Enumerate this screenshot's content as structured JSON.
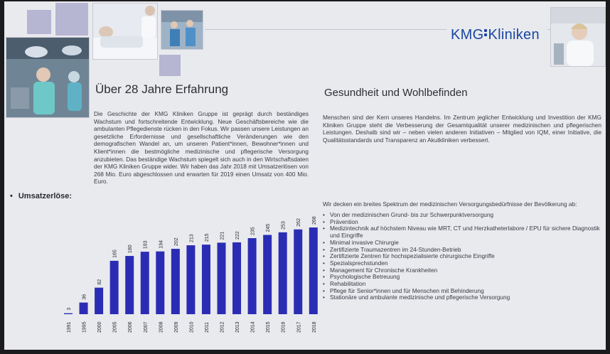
{
  "brand": {
    "logo_left": "KMG",
    "logo_right": "Kliniken",
    "accent": "#1a46a0",
    "bar_color": "#2a2db4",
    "deco_square_color": "#b6b5d2"
  },
  "left": {
    "heading": "Über 28 Jahre Erfahrung",
    "paragraph": "Die Geschichte der KMG Kliniken Gruppe ist geprägt durch beständiges Wachstum und fortschreitende Entwicklung. Neue Geschäftsbereiche wie die ambulanten Pflegedienste rücken in den Fokus. Wir passen unsere Leistungen an gesetzliche Erfordernisse und gesellschaftliche Veränderungen wie den demografischen Wandel an, um unseren Patient*innen, Bewohner*innen und Klient*innen die bestmögliche medizinische und pflegerische Versorgung anzubieten. Das beständige Wachstum spiegelt sich auch in den Wirtschaftsdaten der KMG Kliniken Gruppe wider. Wir haben das Jahr 2018 mit Umsatzerlösen von 268 Mio. Euro abgeschlossen und erwarten für 2019 einen Umsatz von 400 Mio. Euro.",
    "chart_label": "Umsatzerlöse:"
  },
  "right": {
    "heading": "Gesundheit und Wohlbefinden",
    "paragraph": "Menschen sind der Kern unseres Handelns. Im Zentrum jeglicher Entwicklung und Investition der KMG Kliniken Gruppe steht die Verbesserung der Gesamtqualität unserer medizinischen und pflegerischen Leistungen. Deshalb sind wir – neben vielen anderen Initiativen – Mitglied von IQM, einer Initiative, die Qualitätsstandards und Transparenz an Akutkliniken verbessert.",
    "intro": "Wir decken ein breites Spektrum der medizinischen Versorgungsbedürfnisse der Bevölkerung ab:",
    "items": [
      "Von der medizinischen Grund- bis zur Schwerpunktversorgung",
      "Prävention",
      "Medizintechnik auf höchstem Niveau wie MRT, CT und Herzkatheterlabore / EPU für sichere Diagnostik und Eingriffe",
      "Minimal invasive Chirurgie",
      "Zertifizierte Traumazentren im 24-Stunden-Betrieb",
      "Zertifizierte Zentren für hochspezialisierte chirurgische Eingriffe",
      "Spezialsprechstunden",
      "Management für Chronische Krankheiten",
      "Psychologische Betreuung",
      "Rehabilitation",
      "Pflege für Senior*innen und für Menschen mit Behinderung",
      "Stationäre und ambulante medizinische und pflegerische Versorgung"
    ]
  },
  "chart_data": {
    "type": "bar",
    "title": "Umsatzerlöse:",
    "categories": [
      "1991",
      "1995",
      "2000",
      "2005",
      "2006",
      "2007",
      "2008",
      "2009",
      "2010",
      "2011",
      "2012",
      "2013",
      "2014",
      "2015",
      "2016",
      "2017",
      "2018"
    ],
    "values": [
      3,
      36,
      82,
      165,
      180,
      193,
      194,
      202,
      213,
      215,
      221,
      222,
      235,
      245,
      253,
      262,
      268
    ],
    "ylim": [
      0,
      268
    ],
    "grid": false,
    "data_labels": true
  }
}
